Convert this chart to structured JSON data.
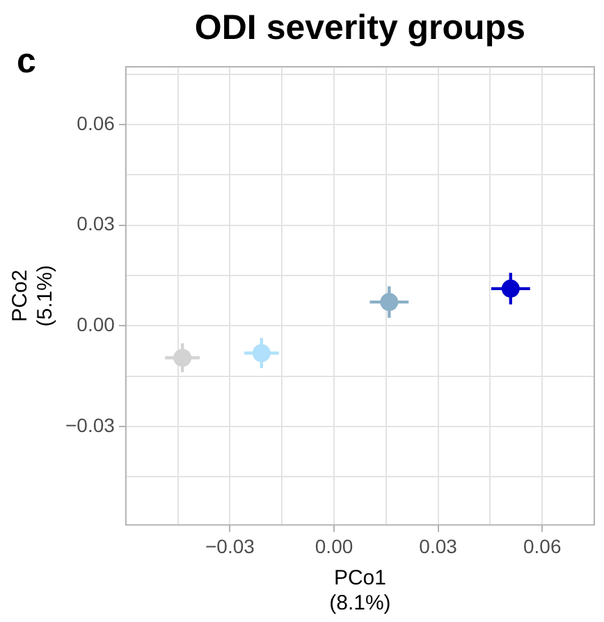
{
  "chart_data": {
    "type": "scatter",
    "title": "ODI severity groups",
    "annotations": [
      "c"
    ],
    "xlabel": "PCo1\n(8.1%)",
    "ylabel": "PCo2\n(5.1%)",
    "x": [
      -0.0437,
      -0.0209,
      0.0159,
      0.0509
    ],
    "values": [
      -0.0095,
      -0.0081,
      0.0071,
      0.0111
    ],
    "colors": [
      "#d3d3d3",
      "#b0e0fb",
      "#8bb0c7",
      "#0000cd"
    ],
    "xerrors": [
      0.005,
      0.005,
      0.0056,
      0.0056
    ],
    "errors": [
      0.0043,
      0.0045,
      0.0047,
      0.0047
    ],
    "marker": "circle",
    "grid": true,
    "xlim": [
      -0.06,
      0.075
    ],
    "ylim": [
      -0.0593,
      0.0772
    ],
    "xticks": [
      {
        "value": -0.045,
        "label": null
      },
      {
        "value": -0.03,
        "label": "−0.03"
      },
      {
        "value": -0.015,
        "label": null
      },
      {
        "value": 0,
        "label": "0.00"
      },
      {
        "value": 0.015,
        "label": null
      },
      {
        "value": 0.03,
        "label": "0.03"
      },
      {
        "value": 0.045,
        "label": null
      },
      {
        "value": 0.06,
        "label": "0.06"
      },
      {
        "value": 0.075,
        "label": null
      }
    ],
    "yticks": [
      {
        "value": -0.045,
        "label": null
      },
      {
        "value": -0.03,
        "label": "−0.03"
      },
      {
        "value": -0.015,
        "label": null
      },
      {
        "value": 0,
        "label": "0.00"
      },
      {
        "value": 0.015,
        "label": null
      },
      {
        "value": 0.03,
        "label": "0.03"
      },
      {
        "value": 0.045,
        "label": null
      },
      {
        "value": 0.06,
        "label": "0.06"
      },
      {
        "value": 0.075,
        "label": null
      }
    ]
  }
}
